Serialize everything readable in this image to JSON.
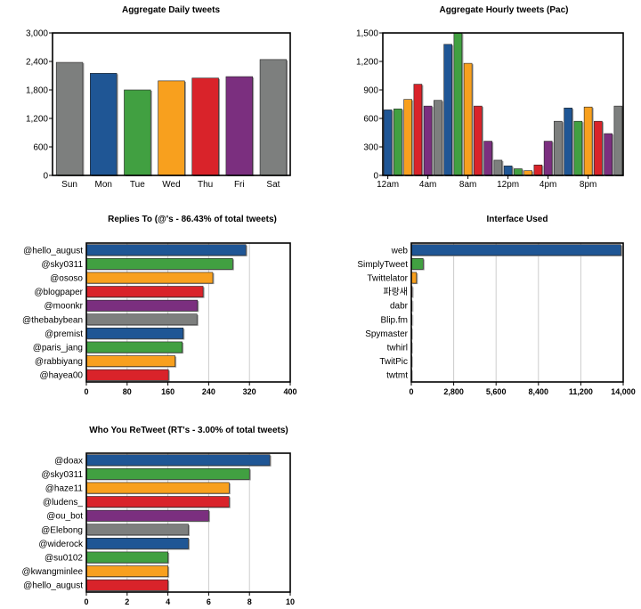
{
  "palette": {
    "grey": "#7d7f7e",
    "blue": "#1f5695",
    "green": "#41a041",
    "orange": "#f8a01e",
    "red": "#d9232a",
    "purple": "#7b2f7f",
    "axis": "#000000",
    "grid": "#cccccc"
  },
  "chart_data": [
    {
      "type": "bar",
      "title": "Aggregate Daily tweets",
      "categories": [
        "Sun",
        "Mon",
        "Tue",
        "Wed",
        "Thu",
        "Fri",
        "Sat"
      ],
      "values": [
        2380,
        2150,
        1800,
        1990,
        2050,
        2080,
        2440
      ],
      "colors": [
        "grey",
        "blue",
        "green",
        "orange",
        "red",
        "purple",
        "grey"
      ],
      "ylim": [
        0,
        3000
      ],
      "yticks": [
        "0",
        "600",
        "1,200",
        "1,800",
        "2,400",
        "3,000"
      ],
      "grid": false
    },
    {
      "type": "bar",
      "title": "Aggregate Hourly tweets (Pac)",
      "hours": [
        0,
        1,
        2,
        3,
        4,
        5,
        6,
        7,
        8,
        9,
        10,
        11,
        12,
        13,
        14,
        15,
        16,
        17,
        18,
        19,
        20,
        21,
        22,
        23
      ],
      "values": [
        690,
        700,
        800,
        960,
        730,
        790,
        1380,
        1500,
        1180,
        730,
        360,
        160,
        100,
        70,
        50,
        110,
        360,
        570,
        710,
        570,
        720,
        570,
        440,
        730
      ],
      "colors": [
        "blue",
        "green",
        "orange",
        "red",
        "purple",
        "grey",
        "blue",
        "green",
        "orange",
        "red",
        "purple",
        "grey",
        "blue",
        "green",
        "orange",
        "red",
        "purple",
        "grey",
        "blue",
        "green",
        "orange",
        "red",
        "purple",
        "grey"
      ],
      "xtick_labels": [
        "12am",
        "4am",
        "8am",
        "12pm",
        "4pm",
        "8pm"
      ],
      "xtick_hours": [
        0,
        4,
        8,
        12,
        16,
        20
      ],
      "ylim": [
        0,
        1500
      ],
      "yticks": [
        "0",
        "300",
        "600",
        "900",
        "1,200",
        "1,500"
      ],
      "grid": false
    },
    {
      "type": "bar",
      "orientation": "horizontal",
      "title": "Replies To (@'s - 86.43% of total tweets)",
      "categories": [
        "@hello_august",
        "@sky0311",
        "@ososo",
        "@blogpaper",
        "@moonkr",
        "@thebabybean",
        "@premist",
        "@paris_jang",
        "@rabbiyang",
        "@hayea00"
      ],
      "values": [
        313,
        287,
        248,
        229,
        218,
        217,
        190,
        188,
        174,
        161
      ],
      "colors": [
        "blue",
        "green",
        "orange",
        "red",
        "purple",
        "grey",
        "blue",
        "green",
        "orange",
        "red"
      ],
      "xlim": [
        0,
        400
      ],
      "xticks": [
        "0",
        "80",
        "160",
        "240",
        "320",
        "400"
      ],
      "grid": true
    },
    {
      "type": "bar",
      "orientation": "horizontal",
      "title": "Interface Used",
      "categories": [
        "web",
        "SimplyTweet",
        "Twittelator",
        "파랑새",
        "dabr",
        "Blip.fm",
        "Spymaster",
        "twhirl",
        "TwitPic",
        "twtmt"
      ],
      "values": [
        13850,
        780,
        340,
        55,
        45,
        40,
        30,
        25,
        20,
        15
      ],
      "colors": [
        "blue",
        "green",
        "orange",
        "red",
        "purple",
        "grey",
        "blue",
        "green",
        "orange",
        "red"
      ],
      "xlim": [
        0,
        14000
      ],
      "xticks": [
        "0",
        "2,800",
        "5,600",
        "8,400",
        "11,200",
        "14,000"
      ],
      "grid": true
    },
    {
      "type": "bar",
      "orientation": "horizontal",
      "title": "Who You ReTweet (RT's - 3.00% of total tweets)",
      "categories": [
        "@doax",
        "@sky0311",
        "@haze11",
        "@ludens_",
        "@ou_bot",
        "@Elebong",
        "@widerock",
        "@su0102",
        "@kwangminlee",
        "@hello_august"
      ],
      "values": [
        9,
        8,
        7,
        7,
        6,
        5,
        5,
        4,
        4,
        4
      ],
      "colors": [
        "blue",
        "green",
        "orange",
        "red",
        "purple",
        "grey",
        "blue",
        "green",
        "orange",
        "red"
      ],
      "xlim": [
        0,
        10
      ],
      "xticks": [
        "0",
        "2",
        "4",
        "6",
        "8",
        "10"
      ],
      "grid": true
    }
  ]
}
